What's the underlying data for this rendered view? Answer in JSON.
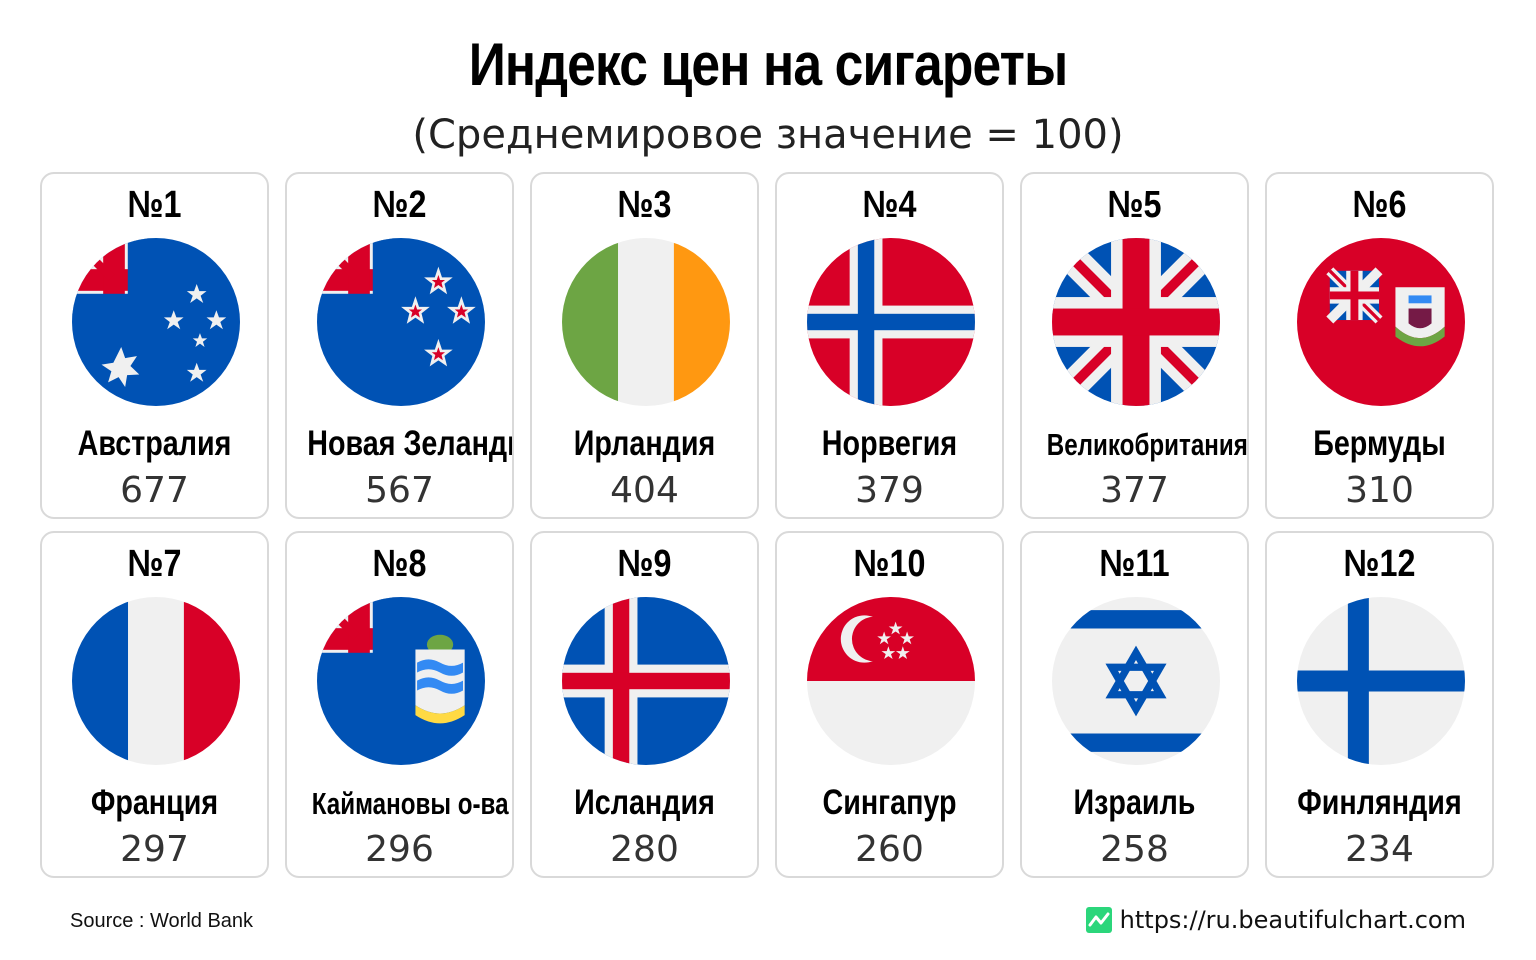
{
  "title": "Индекс цен на сигареты",
  "subtitle": "(Среднемировое значение = 100)",
  "cards": [
    {
      "rank": "№1",
      "country": "Австралия",
      "value": "677",
      "flag": "australia-flag-icon"
    },
    {
      "rank": "№2",
      "country": "Новая Зеландия",
      "value": "567",
      "flag": "new-zealand-flag-icon"
    },
    {
      "rank": "№3",
      "country": "Ирландия",
      "value": "404",
      "flag": "ireland-flag-icon"
    },
    {
      "rank": "№4",
      "country": "Норвегия",
      "value": "379",
      "flag": "norway-flag-icon"
    },
    {
      "rank": "№5",
      "country": "Великобритания",
      "value": "377",
      "flag": "united-kingdom-flag-icon"
    },
    {
      "rank": "№6",
      "country": "Бермуды",
      "value": "310",
      "flag": "bermuda-flag-icon"
    },
    {
      "rank": "№7",
      "country": "Франция",
      "value": "297",
      "flag": "france-flag-icon"
    },
    {
      "rank": "№8",
      "country": "Каймановы о-ва",
      "value": "296",
      "flag": "cayman-islands-flag-icon"
    },
    {
      "rank": "№9",
      "country": "Исландия",
      "value": "280",
      "flag": "iceland-flag-icon"
    },
    {
      "rank": "№10",
      "country": "Сингапур",
      "value": "260",
      "flag": "singapore-flag-icon"
    },
    {
      "rank": "№11",
      "country": "Израиль",
      "value": "258",
      "flag": "israel-flag-icon"
    },
    {
      "rank": "№12",
      "country": "Финляндия",
      "value": "234",
      "flag": "finland-flag-icon"
    }
  ],
  "footer": {
    "source": "Source : World Bank",
    "site": "https://ru.beautifulchart.com",
    "logo_icon": "chart-logo-icon"
  },
  "colors": {
    "blue": "#0052b4",
    "red": "#d80027",
    "white": "#f0f0f0",
    "green": "#6da544",
    "orange": "#ff9811",
    "yellow": "#ffda44",
    "logo": "#2bd67b"
  }
}
